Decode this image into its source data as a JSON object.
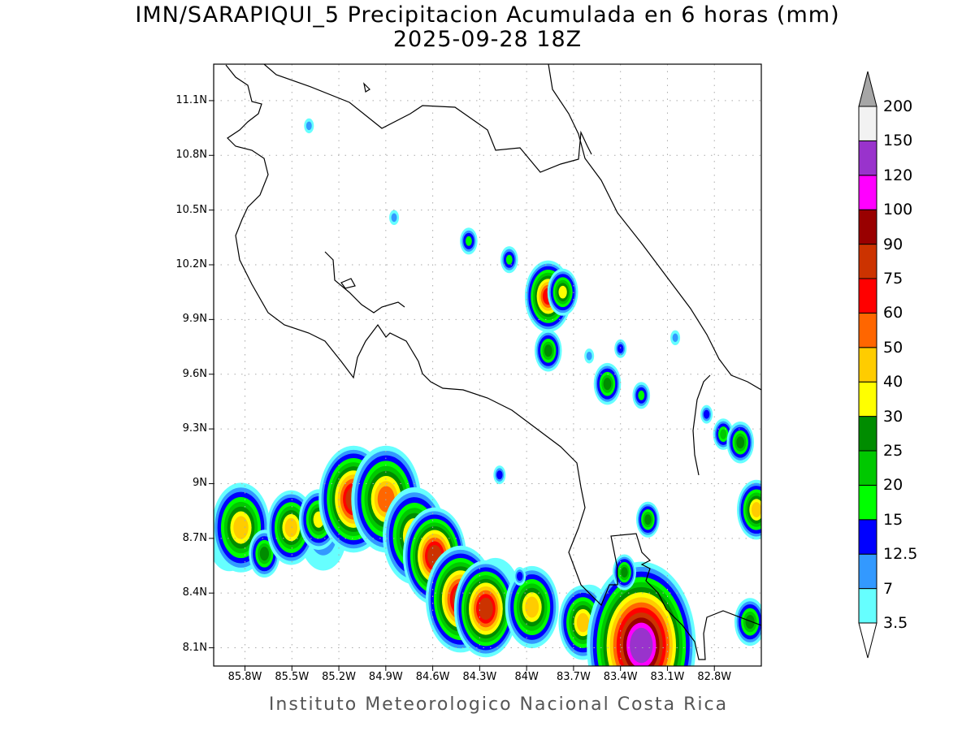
{
  "title": {
    "line1": "IMN/SARAPIQUI_5 Precipitacion Acumulada en 6 horas (mm)",
    "line2": "2025-09-28 18Z"
  },
  "footer": "Instituto Meteorologico Nacional Costa Rica",
  "chart_data": {
    "type": "heatmap",
    "title": "IMN/SARAPIQUI_5 Precipitacion Acumulada en 6 horas (mm)",
    "subtitle": "2025-09-28 18Z",
    "units": "mm",
    "extent": {
      "lon": [
        -86.0,
        -82.5
      ],
      "lat": [
        8.0,
        11.3
      ]
    },
    "grid": true,
    "lon_ticks": [
      {
        "value": -85.8,
        "label": "85.8W"
      },
      {
        "value": -85.5,
        "label": "85.5W"
      },
      {
        "value": -85.2,
        "label": "85.2W"
      },
      {
        "value": -84.9,
        "label": "84.9W"
      },
      {
        "value": -84.6,
        "label": "84.6W"
      },
      {
        "value": -84.3,
        "label": "84.3W"
      },
      {
        "value": -84.0,
        "label": "84W"
      },
      {
        "value": -83.7,
        "label": "83.7W"
      },
      {
        "value": -83.4,
        "label": "83.4W"
      },
      {
        "value": -83.1,
        "label": "83.1W"
      },
      {
        "value": -82.8,
        "label": "82.8W"
      }
    ],
    "lat_ticks": [
      {
        "value": 11.1,
        "label": "11.1N"
      },
      {
        "value": 10.8,
        "label": "10.8N"
      },
      {
        "value": 10.5,
        "label": "10.5N"
      },
      {
        "value": 10.2,
        "label": "10.2N"
      },
      {
        "value": 9.9,
        "label": "9.9N"
      },
      {
        "value": 9.6,
        "label": "9.6N"
      },
      {
        "value": 9.3,
        "label": "9.3N"
      },
      {
        "value": 9.0,
        "label": "9N"
      },
      {
        "value": 8.7,
        "label": "8.7N"
      },
      {
        "value": 8.4,
        "label": "8.4N"
      },
      {
        "value": 8.1,
        "label": "8.1N"
      }
    ],
    "colorbar": {
      "labels": [
        "3.5",
        "7",
        "12.5",
        "15",
        "20",
        "25",
        "30",
        "40",
        "50",
        "60",
        "75",
        "90",
        "100",
        "120",
        "150",
        "200"
      ],
      "thresholds": [
        3.5,
        7,
        12.5,
        15,
        20,
        25,
        30,
        40,
        50,
        60,
        75,
        90,
        100,
        120,
        150,
        200
      ],
      "colors": [
        "#66ffff",
        "#3399ff",
        "#0000ff",
        "#00ff00",
        "#00c800",
        "#008c00",
        "#ffff00",
        "#ffcc00",
        "#ff6600",
        "#ff0000",
        "#cc3300",
        "#990000",
        "#ff00ff",
        "#9933cc",
        "#f2f2f2"
      ],
      "over_color": "#a6a6a6",
      "under_color": "#ffffff"
    },
    "cells": [
      {
        "lon": -85.9,
        "lat": 8.7,
        "max": 7,
        "w": 2.2
      },
      {
        "lon": -85.3,
        "lat": 8.72,
        "max": 7,
        "w": 2.4
      },
      {
        "lon": -84.7,
        "lat": 8.75,
        "max": 7,
        "w": 2.2
      },
      {
        "lon": -84.2,
        "lat": 8.38,
        "max": 7,
        "w": 2.6
      },
      {
        "lon": -83.6,
        "lat": 8.25,
        "max": 7,
        "w": 2.4
      },
      {
        "lon": -83.2,
        "lat": 8.12,
        "max": 7,
        "w": 2.4
      },
      {
        "lon": -85.826,
        "lat": 8.759,
        "max": 40,
        "w": 1.2
      },
      {
        "lon": -85.676,
        "lat": 8.616,
        "max": 25,
        "w": 0.8
      },
      {
        "lon": -85.505,
        "lat": 8.759,
        "max": 40,
        "w": 1
      },
      {
        "lon": -85.329,
        "lat": 8.803,
        "max": 30,
        "w": 0.9
      },
      {
        "lon": -85.106,
        "lat": 8.915,
        "max": 75,
        "w": 1.1
      },
      {
        "lon": -84.898,
        "lat": 8.915,
        "max": 50,
        "w": 1.3
      },
      {
        "lon": -84.717,
        "lat": 8.714,
        "max": 40,
        "w": 1.3
      },
      {
        "lon": -84.588,
        "lat": 8.603,
        "max": 75,
        "w": 1
      },
      {
        "lon": -84.422,
        "lat": 8.367,
        "max": 75,
        "w": 1.1
      },
      {
        "lon": -84.261,
        "lat": 8.314,
        "max": 75,
        "w": 1
      },
      {
        "lon": -83.966,
        "lat": 8.323,
        "max": 40,
        "w": 1.1
      },
      {
        "lon": -83.64,
        "lat": 8.238,
        "max": 40,
        "w": 1
      },
      {
        "lon": -83.267,
        "lat": 8.113,
        "max": 120,
        "w": 1.4
      },
      {
        "lon": -83.862,
        "lat": 10.027,
        "max": 60,
        "w": 0.8
      },
      {
        "lon": -83.769,
        "lat": 10.05,
        "max": 30,
        "w": 0.7
      },
      {
        "lon": -83.862,
        "lat": 9.729,
        "max": 25,
        "w": 0.7
      },
      {
        "lon": -84.111,
        "lat": 10.228,
        "max": 15,
        "w": 0.6
      },
      {
        "lon": -84.37,
        "lat": 10.33,
        "max": 15,
        "w": 0.6
      },
      {
        "lon": -83.484,
        "lat": 9.547,
        "max": 25,
        "w": 0.7
      },
      {
        "lon": -83.267,
        "lat": 9.484,
        "max": 15,
        "w": 0.6
      },
      {
        "lon": -82.743,
        "lat": 9.271,
        "max": 20,
        "w": 0.6
      },
      {
        "lon": -82.634,
        "lat": 9.226,
        "max": 25,
        "w": 0.7
      },
      {
        "lon": -82.531,
        "lat": 8.857,
        "max": 40,
        "w": 0.8
      },
      {
        "lon": -83.225,
        "lat": 8.803,
        "max": 25,
        "w": 0.6
      },
      {
        "lon": -83.375,
        "lat": 8.514,
        "max": 25,
        "w": 0.6
      },
      {
        "lon": -82.572,
        "lat": 8.242,
        "max": 25,
        "w": 0.8
      },
      {
        "lon": -84.173,
        "lat": 9.048,
        "max": 12.5,
        "w": 0.5
      },
      {
        "lon": -84.044,
        "lat": 8.492,
        "max": 12.5,
        "w": 0.5
      },
      {
        "lon": -84.847,
        "lat": 10.459,
        "max": 7,
        "w": 0.5
      },
      {
        "lon": -85.391,
        "lat": 10.962,
        "max": 7,
        "w": 0.5
      },
      {
        "lon": -83.6,
        "lat": 9.7,
        "max": 7,
        "w": 0.5
      },
      {
        "lon": -83.4,
        "lat": 9.74,
        "max": 12.5,
        "w": 0.5
      },
      {
        "lon": -83.05,
        "lat": 9.8,
        "max": 7,
        "w": 0.5
      },
      {
        "lon": -82.85,
        "lat": 9.38,
        "max": 12.5,
        "w": 0.5
      }
    ]
  }
}
